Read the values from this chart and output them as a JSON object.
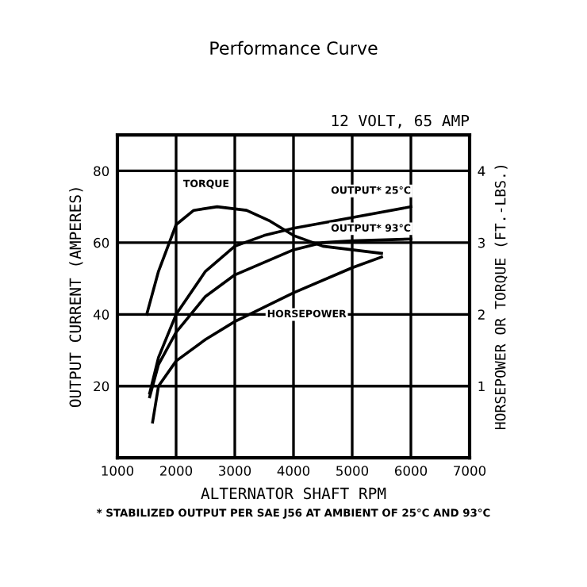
{
  "chart_data": {
    "type": "line",
    "title": "Performance Curve",
    "subtitle": "12 VOLT, 65 AMP",
    "xlabel": "ALTERNATOR SHAFT RPM",
    "ylabel": "OUTPUT CURRENT (AMPERES)",
    "y2label": "HORSEPOWER OR TORQUE (FT.-LBS.)",
    "annotations": [
      "* STABILIZED OUTPUT PER SAE J56 AT AMBIENT OF 25°C AND 93°C"
    ],
    "xlim": [
      1000,
      7000
    ],
    "xticks": [
      1000,
      2000,
      3000,
      4000,
      5000,
      6000,
      7000
    ],
    "ylim": [
      0,
      90
    ],
    "yticks": [
      20,
      40,
      60,
      80
    ],
    "y2lim": [
      0,
      4.5
    ],
    "y2ticks": [
      1,
      2,
      3,
      4
    ],
    "grid": true,
    "legend": false,
    "series": [
      {
        "name": "TORQUE",
        "axis": "y2",
        "color": "#000000",
        "x": [
          1500,
          1700,
          2000,
          2300,
          2700,
          3200,
          3600,
          4000,
          4500,
          5000,
          5500
        ],
        "values": [
          2.0,
          2.6,
          3.25,
          3.45,
          3.5,
          3.45,
          3.3,
          3.1,
          2.95,
          2.9,
          2.85
        ]
      },
      {
        "name": "OUTPUT* 25°C",
        "color": "#000000",
        "x": [
          1550,
          1700,
          2000,
          2500,
          3000,
          3500,
          4000,
          5000,
          6000
        ],
        "values": [
          18,
          28,
          40,
          52,
          59,
          62,
          64,
          67,
          70
        ]
      },
      {
        "name": "OUTPUT* 93°C",
        "color": "#000000",
        "x": [
          1550,
          1700,
          2000,
          2500,
          3000,
          4000,
          4500,
          5000,
          6000
        ],
        "values": [
          17,
          26,
          35,
          45,
          51,
          58,
          60,
          60.5,
          61
        ]
      },
      {
        "name": "HORSEPOWER",
        "axis": "y2",
        "color": "#000000",
        "x": [
          1600,
          1700,
          2000,
          2500,
          3000,
          4000,
          5000,
          5500
        ],
        "values": [
          0.5,
          1.0,
          1.35,
          1.65,
          1.9,
          2.3,
          2.65,
          2.8
        ]
      }
    ]
  }
}
